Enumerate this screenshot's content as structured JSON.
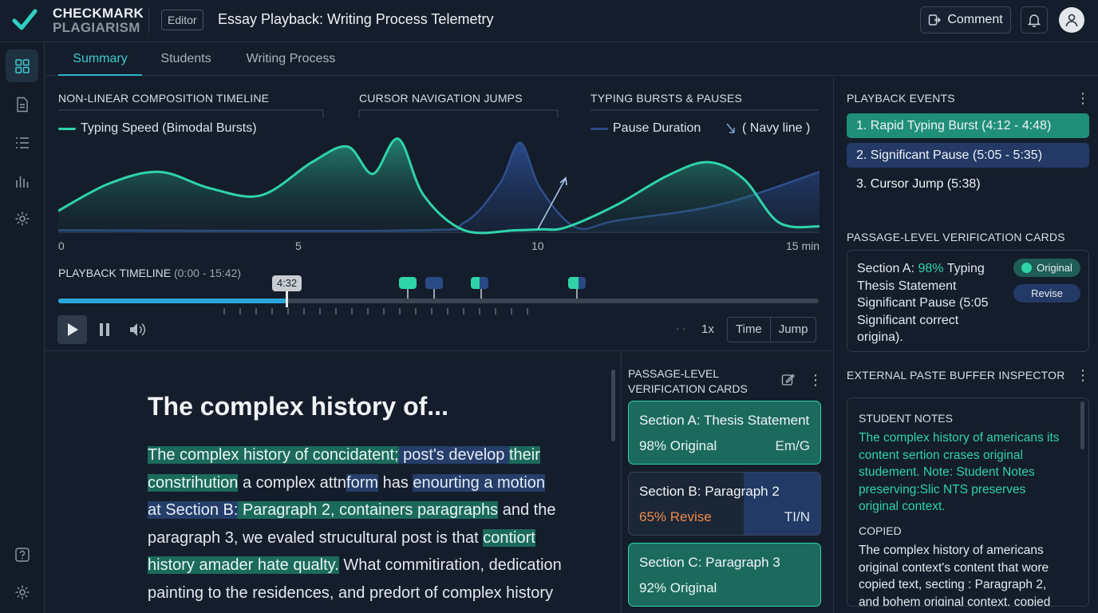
{
  "brand": {
    "line1": "CHECKMARK",
    "line2": "PLAGIARISM"
  },
  "header": {
    "badge": "Editor",
    "title": "Essay Playback: Writing Process Telemetry",
    "comment_label": "Comment"
  },
  "tabs": [
    "Summary",
    "Students",
    "Writing Process"
  ],
  "charts": {
    "composition_title": "NON-LINEAR COMPOSITION TIMELINE",
    "cursor_title": "CURSOR NAVIGATION JUMPS",
    "bursts_title": "TYPING BURSTS & PAUSES",
    "legend_speed": "Typing Speed (Bimodal Bursts)",
    "legend_pause": "Pause Duration",
    "legend_navy": "( Navy line )",
    "colors": {
      "speed": "#2fd3a8",
      "pause": "#2a4a86",
      "jump": "#a9c6e6"
    }
  },
  "chart_data": {
    "type": "area",
    "xlabel_ticks": [
      "0",
      "5",
      "10",
      "15 min"
    ],
    "xlim": [
      0,
      15
    ],
    "series": [
      {
        "name": "Typing Speed (Bimodal Bursts)",
        "x": [
          0,
          1,
          2,
          3,
          4,
          5,
          5.7,
          6.2,
          6.7,
          7.2,
          8,
          9,
          9.5,
          10,
          11,
          12,
          12.8,
          13.5,
          14.2,
          15
        ],
        "y": [
          0.22,
          0.5,
          0.62,
          0.45,
          0.38,
          0.72,
          0.88,
          0.6,
          0.96,
          0.38,
          0.02,
          0.02,
          0.03,
          0.05,
          0.28,
          0.58,
          0.72,
          0.55,
          0.1,
          0.06
        ]
      },
      {
        "name": "Pause Duration",
        "x": [
          0,
          7,
          8,
          8.7,
          9.1,
          9.5,
          10.2,
          11,
          13,
          15
        ],
        "y": [
          0.02,
          0.02,
          0.1,
          0.5,
          0.92,
          0.45,
          0.05,
          0.12,
          0.28,
          0.62
        ]
      }
    ],
    "annotations": [
      "cursor jump arrow near 9.5 min"
    ]
  },
  "playback": {
    "title": "PLAYBACK TIMELINE",
    "range": "(0:00 - 15:42)",
    "current": "4:32",
    "progress": 0.3,
    "speed": "1x",
    "dots": "· ·",
    "btn_time": "Time",
    "btn_jump": "Jump"
  },
  "essay": {
    "title": "The complex history of...",
    "lines": [
      [
        {
          "t": "The complex history of concidatent;",
          "c": "hg"
        },
        {
          "t": " post's develop ",
          "c": "hb"
        },
        {
          "t": "their",
          "c": "hg"
        }
      ],
      [
        {
          "t": "constrihution",
          "c": "hg"
        },
        {
          "t": " a complex attn",
          "c": ""
        },
        {
          "t": "form",
          "c": "hb"
        },
        {
          "t": " has ",
          "c": ""
        },
        {
          "t": "enourting a motion",
          "c": "hb"
        }
      ],
      [
        {
          "t": "at",
          "c": "hb"
        },
        {
          "t": " Section B:",
          "c": "hb"
        },
        {
          "t": " Paragraph 2, containers paragraphs",
          "c": "hg"
        },
        {
          "t": " and the",
          "c": ""
        }
      ],
      [
        {
          "t": "paragraph 3, we evaled strucultural post is that ",
          "c": ""
        },
        {
          "t": "contiort",
          "c": "hg"
        }
      ],
      [
        {
          "t": "history amader hate qualty.",
          "c": "hg"
        },
        {
          "t": " What commitiration, dedication",
          "c": ""
        }
      ],
      [
        {
          "t": "painting to the residences, and predort of complex history",
          "c": ""
        }
      ]
    ]
  },
  "mid_cards": {
    "header_line1": "PASSAGE-LEVEL",
    "header_line2": "VERIFICATION CARDS",
    "cards": [
      {
        "title": "Section A: Thesis Statement",
        "status": "98% Original",
        "tag": "Em/G"
      },
      {
        "title": "Section B: Paragraph 2",
        "status": "65% Revise",
        "tag": "TI/N"
      },
      {
        "title": "Section C: Paragraph 3",
        "status": "92% Original",
        "tag": ""
      }
    ]
  },
  "right": {
    "events_title": "PLAYBACK EVENTS",
    "events": [
      "1. Rapid Typing Burst (4:12 - 4:48)",
      "2. Significant Pause (5:05 - 5:35)",
      "3. Cursor Jump (5:38)"
    ],
    "verify_title": "PASSAGE-LEVEL VERIFICATION CARDS",
    "verify_lines": [
      "Thesis Statement",
      "Significant Pause (5:05",
      "Significant correct",
      "origina)."
    ],
    "verify_prefix": "Section A: ",
    "verify_pct": "98%",
    "verify_suffix": " Typing",
    "pill_original": "Original",
    "pill_revise": "Revise",
    "inspector_title": "EXTERNAL PASTE BUFFER INSPECTOR",
    "notes_label": "STUDENT NOTES",
    "notes_lines": [
      "The complex history of americans its",
      "content sertion crases original",
      "studement. Note: Student Notes",
      "preserving:Slic NTS preserves",
      "original context."
    ],
    "copied_label": "COPIED",
    "copied_lines": [
      "The complex history of americans",
      "original context's content that wore",
      "copied text, secting : Paragraph 2,",
      "and bohem original context, copied"
    ]
  }
}
